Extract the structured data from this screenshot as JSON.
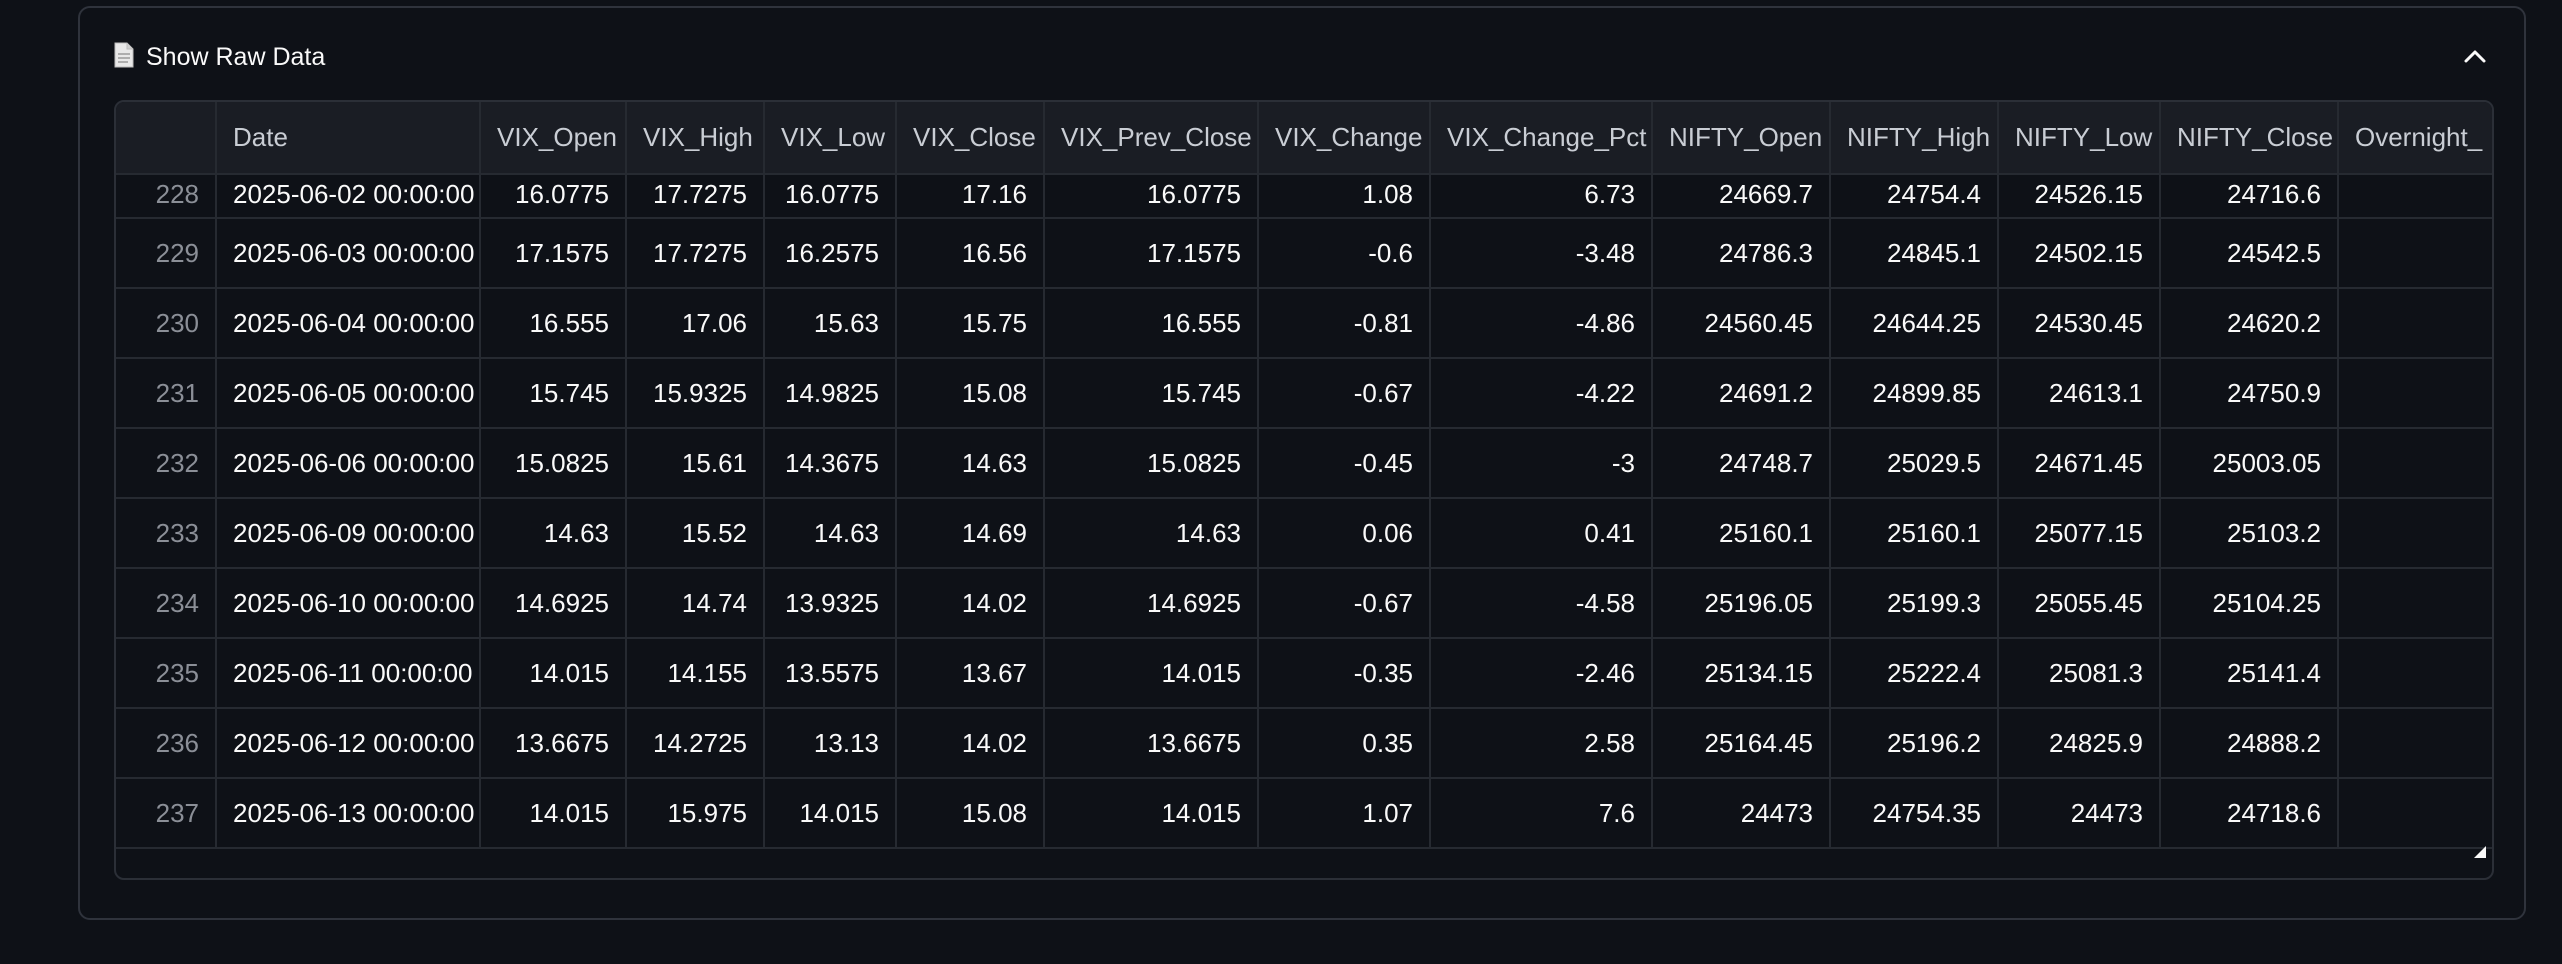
{
  "expander": {
    "title": "Show Raw Data",
    "icon": "document-icon",
    "toggle_icon": "chevron-up-icon"
  },
  "table": {
    "columns": [
      "",
      "Date",
      "VIX_Open",
      "VIX_High",
      "VIX_Low",
      "VIX_Close",
      "VIX_Prev_Close",
      "VIX_Change",
      "VIX_Change_Pct",
      "NIFTY_Open",
      "NIFTY_High",
      "NIFTY_Low",
      "NIFTY_Close",
      "Overnight_"
    ],
    "rows": [
      [
        "228",
        "2025-06-02 00:00:00",
        "16.0775",
        "17.7275",
        "16.0775",
        "17.16",
        "16.0775",
        "1.08",
        "6.73",
        "24669.7",
        "24754.4",
        "24526.15",
        "24716.6",
        ""
      ],
      [
        "229",
        "2025-06-03 00:00:00",
        "17.1575",
        "17.7275",
        "16.2575",
        "16.56",
        "17.1575",
        "-0.6",
        "-3.48",
        "24786.3",
        "24845.1",
        "24502.15",
        "24542.5",
        ""
      ],
      [
        "230",
        "2025-06-04 00:00:00",
        "16.555",
        "17.06",
        "15.63",
        "15.75",
        "16.555",
        "-0.81",
        "-4.86",
        "24560.45",
        "24644.25",
        "24530.45",
        "24620.2",
        ""
      ],
      [
        "231",
        "2025-06-05 00:00:00",
        "15.745",
        "15.9325",
        "14.9825",
        "15.08",
        "15.745",
        "-0.67",
        "-4.22",
        "24691.2",
        "24899.85",
        "24613.1",
        "24750.9",
        ""
      ],
      [
        "232",
        "2025-06-06 00:00:00",
        "15.0825",
        "15.61",
        "14.3675",
        "14.63",
        "15.0825",
        "-0.45",
        "-3",
        "24748.7",
        "25029.5",
        "24671.45",
        "25003.05",
        ""
      ],
      [
        "233",
        "2025-06-09 00:00:00",
        "14.63",
        "15.52",
        "14.63",
        "14.69",
        "14.63",
        "0.06",
        "0.41",
        "25160.1",
        "25160.1",
        "25077.15",
        "25103.2",
        ""
      ],
      [
        "234",
        "2025-06-10 00:00:00",
        "14.6925",
        "14.74",
        "13.9325",
        "14.02",
        "14.6925",
        "-0.67",
        "-4.58",
        "25196.05",
        "25199.3",
        "25055.45",
        "25104.25",
        ""
      ],
      [
        "235",
        "2025-06-11 00:00:00",
        "14.015",
        "14.155",
        "13.5575",
        "13.67",
        "14.015",
        "-0.35",
        "-2.46",
        "25134.15",
        "25222.4",
        "25081.3",
        "25141.4",
        ""
      ],
      [
        "236",
        "2025-06-12 00:00:00",
        "13.6675",
        "14.2725",
        "13.13",
        "14.02",
        "13.6675",
        "0.35",
        "2.58",
        "25164.45",
        "25196.2",
        "24825.9",
        "24888.2",
        ""
      ],
      [
        "237",
        "2025-06-13 00:00:00",
        "14.015",
        "15.975",
        "14.015",
        "15.08",
        "14.015",
        "1.07",
        "7.6",
        "24473",
        "24754.35",
        "24473",
        "24718.6",
        ""
      ]
    ]
  }
}
